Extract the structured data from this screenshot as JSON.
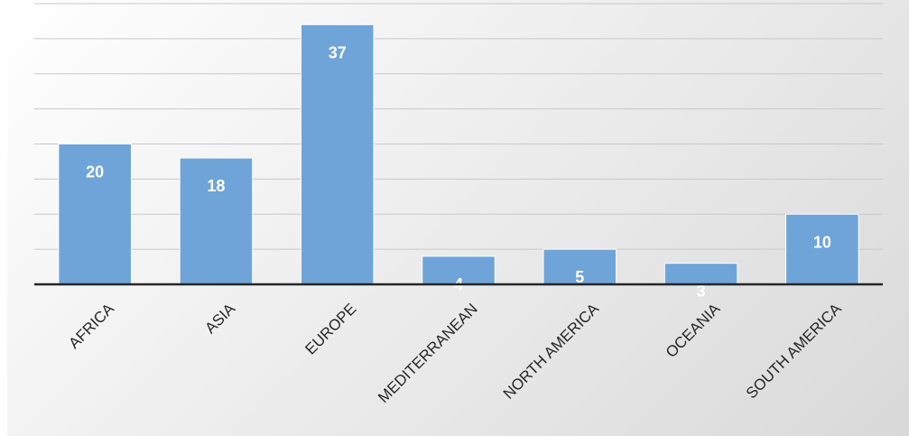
{
  "chart_data": {
    "type": "bar",
    "categories": [
      "AFRICA",
      "ASIA",
      "EUROPE",
      "MEDITERRANEAN",
      "NORTH AMERICA",
      "OCEANIA",
      "SOUTH AMERICA"
    ],
    "values": [
      20,
      18,
      37,
      4,
      5,
      3,
      10
    ],
    "data_labels": [
      "20",
      "18",
      "37",
      "4",
      "5",
      "3",
      "10"
    ],
    "ylim": [
      0,
      40
    ],
    "y_grid_step": 5,
    "grid": true,
    "legend": "none",
    "colors": {
      "bar": "#6fa4d8",
      "data_label": "#ffffff",
      "gridline": "#c8c8c8",
      "axis": "#262626"
    }
  }
}
